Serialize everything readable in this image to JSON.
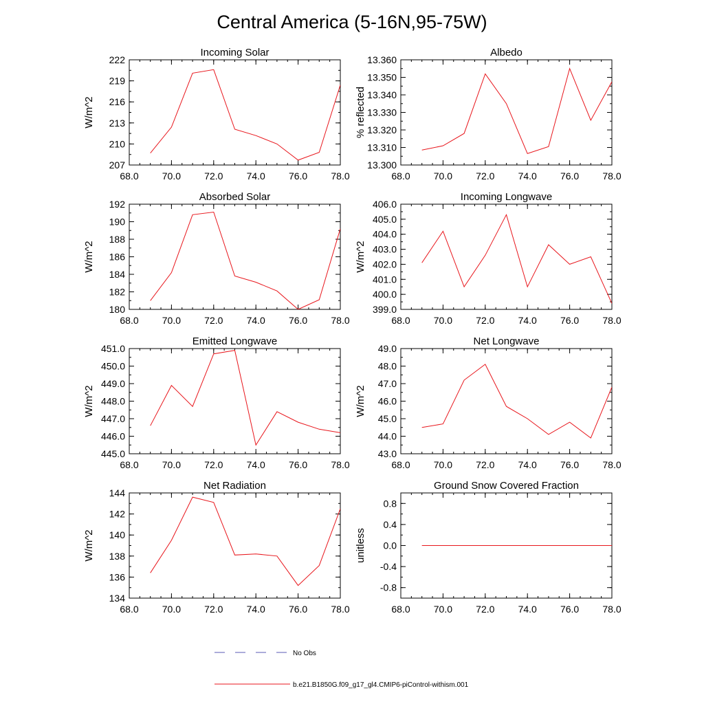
{
  "title": "Central America (5-16N,95-75W)",
  "legend": {
    "obs_label": "No Obs",
    "model_label": "b.e21.B1850G.f09_g17_gl4.CMIP6-piControl-withism.001",
    "obs_color": "#5a5ab4",
    "model_color": "#e8151b"
  },
  "chart_data": [
    {
      "type": "line",
      "title": "Incoming Solar",
      "ylabel": "W/m^2",
      "xlim": [
        68,
        78
      ],
      "ylim": [
        207,
        222
      ],
      "xticks": [
        "68.0",
        "70.0",
        "72.0",
        "74.0",
        "76.0",
        "78.0"
      ],
      "yticks": [
        "207",
        "210",
        "213",
        "216",
        "219",
        "222"
      ],
      "series": [
        {
          "name": "b.e21.B1850G.f09_g17_gl4.CMIP6-piControl-withism.001",
          "x": [
            69,
            70,
            71,
            72,
            73,
            74,
            75,
            76,
            77,
            78
          ],
          "y": [
            208.7,
            212.4,
            220.1,
            220.6,
            212.1,
            211.2,
            210.0,
            207.7,
            208.8,
            218.4
          ]
        }
      ]
    },
    {
      "type": "line",
      "title": "Albedo",
      "ylabel": "% reflected",
      "xlim": [
        68,
        78
      ],
      "ylim": [
        13.3,
        13.36
      ],
      "xticks": [
        "68.0",
        "70.0",
        "72.0",
        "74.0",
        "76.0",
        "78.0"
      ],
      "yticks": [
        "13.300",
        "13.310",
        "13.320",
        "13.330",
        "13.340",
        "13.350",
        "13.360"
      ],
      "series": [
        {
          "name": "b.e21.B1850G.f09_g17_gl4.CMIP6-piControl-withism.001",
          "x": [
            69,
            70,
            71,
            72,
            73,
            74,
            75,
            76,
            77,
            78
          ],
          "y": [
            13.3085,
            13.311,
            13.318,
            13.352,
            13.335,
            13.3065,
            13.3105,
            13.355,
            13.3255,
            13.3475
          ]
        }
      ]
    },
    {
      "type": "line",
      "title": "Absorbed Solar",
      "ylabel": "W/m^2",
      "xlim": [
        68,
        78
      ],
      "ylim": [
        180,
        192
      ],
      "xticks": [
        "68.0",
        "70.0",
        "72.0",
        "74.0",
        "76.0",
        "78.0"
      ],
      "yticks": [
        "180",
        "182",
        "184",
        "186",
        "188",
        "190",
        "192"
      ],
      "series": [
        {
          "name": "b.e21.B1850G.f09_g17_gl4.CMIP6-piControl-withism.001",
          "x": [
            69,
            70,
            71,
            72,
            73,
            74,
            75,
            76,
            77,
            78
          ],
          "y": [
            181.0,
            184.2,
            190.8,
            191.1,
            183.8,
            183.1,
            182.1,
            180.0,
            181.1,
            189.2
          ]
        }
      ]
    },
    {
      "type": "line",
      "title": "Incoming Longwave",
      "ylabel": "W/m^2",
      "xlim": [
        68,
        78
      ],
      "ylim": [
        399,
        406
      ],
      "xticks": [
        "68.0",
        "70.0",
        "72.0",
        "74.0",
        "76.0",
        "78.0"
      ],
      "yticks": [
        "399.0",
        "400.0",
        "401.0",
        "402.0",
        "403.0",
        "404.0",
        "405.0",
        "406.0"
      ],
      "series": [
        {
          "name": "b.e21.B1850G.f09_g17_gl4.CMIP6-piControl-withism.001",
          "x": [
            69,
            70,
            71,
            72,
            73,
            74,
            75,
            76,
            77,
            78
          ],
          "y": [
            402.1,
            404.2,
            400.5,
            402.6,
            405.3,
            400.5,
            403.3,
            402.0,
            402.5,
            399.4
          ]
        }
      ]
    },
    {
      "type": "line",
      "title": "Emitted Longwave",
      "ylabel": "W/m^2",
      "xlim": [
        68,
        78
      ],
      "ylim": [
        445,
        451
      ],
      "xticks": [
        "68.0",
        "70.0",
        "72.0",
        "74.0",
        "76.0",
        "78.0"
      ],
      "yticks": [
        "445.0",
        "446.0",
        "447.0",
        "448.0",
        "449.0",
        "450.0",
        "451.0"
      ],
      "series": [
        {
          "name": "b.e21.B1850G.f09_g17_gl4.CMIP6-piControl-withism.001",
          "x": [
            69,
            70,
            71,
            72,
            73,
            74,
            75,
            76,
            77,
            78
          ],
          "y": [
            446.6,
            448.9,
            447.7,
            450.7,
            450.9,
            445.5,
            447.4,
            446.8,
            446.4,
            446.2
          ]
        }
      ]
    },
    {
      "type": "line",
      "title": "Net Longwave",
      "ylabel": "W/m^2",
      "xlim": [
        68,
        78
      ],
      "ylim": [
        43,
        49
      ],
      "xticks": [
        "68.0",
        "70.0",
        "72.0",
        "74.0",
        "76.0",
        "78.0"
      ],
      "yticks": [
        "43.0",
        "44.0",
        "45.0",
        "46.0",
        "47.0",
        "48.0",
        "49.0"
      ],
      "series": [
        {
          "name": "b.e21.B1850G.f09_g17_gl4.CMIP6-piControl-withism.001",
          "x": [
            69,
            70,
            71,
            72,
            73,
            74,
            75,
            76,
            77,
            78
          ],
          "y": [
            44.5,
            44.7,
            47.2,
            48.1,
            45.7,
            45.0,
            44.1,
            44.8,
            43.9,
            46.8
          ]
        }
      ]
    },
    {
      "type": "line",
      "title": "Net Radiation",
      "ylabel": "W/m^2",
      "xlim": [
        68,
        78
      ],
      "ylim": [
        134,
        144
      ],
      "xticks": [
        "68.0",
        "70.0",
        "72.0",
        "74.0",
        "76.0",
        "78.0"
      ],
      "yticks": [
        "134",
        "136",
        "138",
        "140",
        "142",
        "144"
      ],
      "series": [
        {
          "name": "b.e21.B1850G.f09_g17_gl4.CMIP6-piControl-withism.001",
          "x": [
            69,
            70,
            71,
            72,
            73,
            74,
            75,
            76,
            77,
            78
          ],
          "y": [
            136.4,
            139.5,
            143.6,
            143.1,
            138.1,
            138.2,
            138.0,
            135.2,
            137.1,
            142.5
          ]
        }
      ]
    },
    {
      "type": "line",
      "title": "Ground Snow Covered Fraction",
      "ylabel": "unitless",
      "xlim": [
        68,
        78
      ],
      "ylim": [
        -1.0,
        1.0
      ],
      "xticks": [
        "68.0",
        "70.0",
        "72.0",
        "74.0",
        "76.0",
        "78.0"
      ],
      "yticks": [
        "-0.8",
        "-0.4",
        "0.0",
        "0.4",
        "0.8"
      ],
      "series": [
        {
          "name": "b.e21.B1850G.f09_g17_gl4.CMIP6-piControl-withism.001",
          "x": [
            69,
            70,
            71,
            72,
            73,
            74,
            75,
            76,
            77,
            78
          ],
          "y": [
            0,
            0,
            0,
            0,
            0,
            0,
            0,
            0,
            0,
            0
          ]
        }
      ]
    }
  ]
}
